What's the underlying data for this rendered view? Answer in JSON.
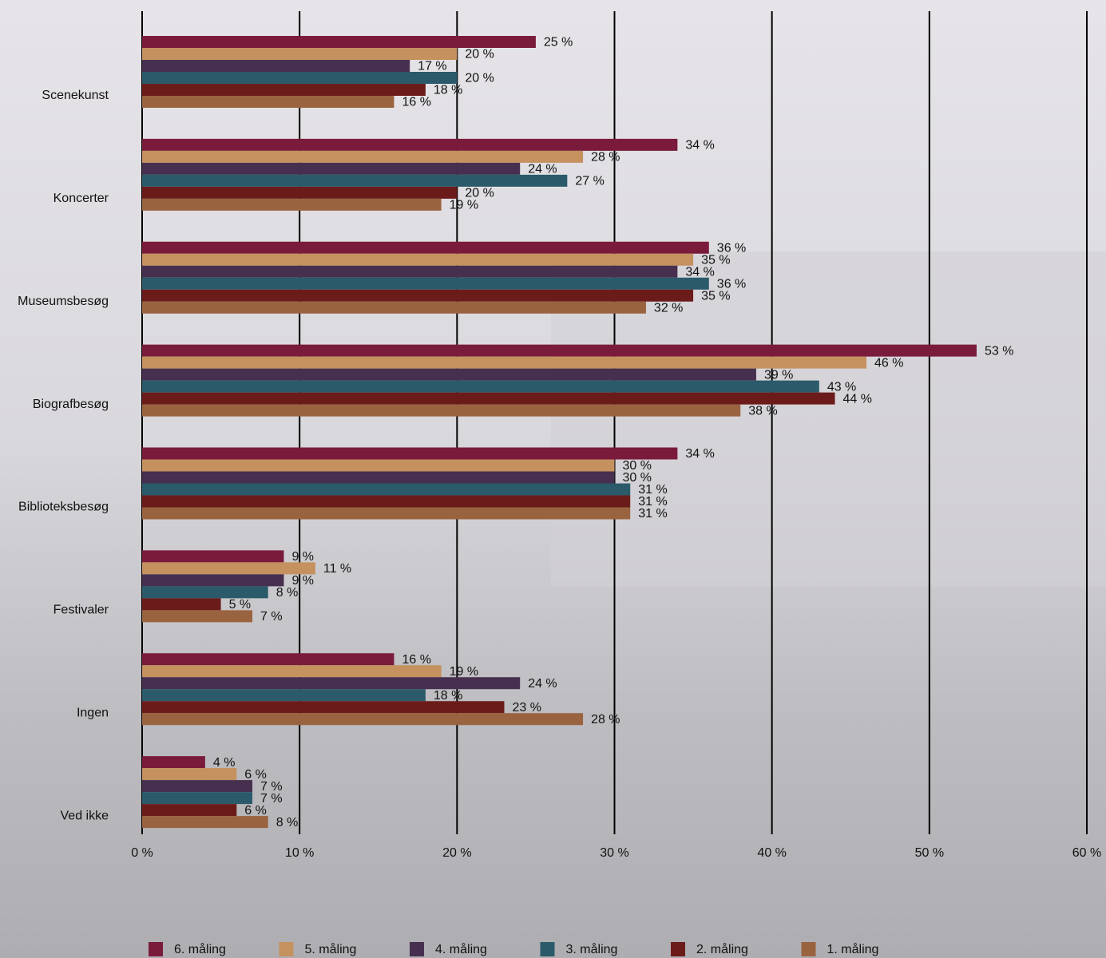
{
  "chart_data": {
    "type": "bar",
    "orientation": "horizontal",
    "categories": [
      "Scenekunst",
      "Koncerter",
      "Museumsbesøg",
      "Biografbesøg",
      "Biblioteksbesøg",
      "Festivaler",
      "Ingen",
      "Ved ikke"
    ],
    "series": [
      {
        "name": "6. måling",
        "color": "#7a1b3b",
        "values": [
          25,
          34,
          36,
          53,
          34,
          9,
          16,
          4
        ],
        "value_labels": [
          "25 %",
          "34 %",
          "36 %",
          "53 %",
          "34 %",
          "9 %",
          "16 %",
          "4 %"
        ]
      },
      {
        "name": "5. måling",
        "color": "#c4915f",
        "values": [
          20,
          28,
          35,
          46,
          30,
          11,
          19,
          6
        ],
        "value_labels": [
          "20 %",
          "28 %",
          "35 %",
          "46 %",
          "30 %",
          "11 %",
          "19 %",
          "6 %"
        ]
      },
      {
        "name": "4. måling",
        "color": "#47304f",
        "values": [
          17,
          24,
          34,
          39,
          30,
          9,
          24,
          7
        ],
        "value_labels": [
          "17 %",
          "24 %",
          "34 %",
          "39 %",
          "30 %",
          "9 %",
          "24 %",
          "7 %"
        ]
      },
      {
        "name": "3. måling",
        "color": "#2b5b6b",
        "values": [
          20,
          27,
          36,
          43,
          31,
          8,
          18,
          7
        ],
        "value_labels": [
          "20 %",
          "27 %",
          "36 %",
          "43 %",
          "31 %",
          "8 %",
          "18 %",
          "7 %"
        ]
      },
      {
        "name": "2. måling",
        "color": "#6b1c1a",
        "values": [
          18,
          20,
          35,
          44,
          31,
          5,
          23,
          6
        ],
        "value_labels": [
          "18 %",
          "20 %",
          "35 %",
          "44 %",
          "31 %",
          "5 %",
          "23 %",
          "6 %"
        ]
      },
      {
        "name": "1. måling",
        "color": "#9a6340",
        "values": [
          16,
          19,
          32,
          38,
          31,
          7,
          28,
          8
        ],
        "value_labels": [
          "16 %",
          "19 %",
          "32 %",
          "38 %",
          "31 %",
          "7 %",
          "28 %",
          "8 %"
        ]
      }
    ],
    "xlim": [
      0,
      60
    ],
    "xticks": [
      {
        "value": 0,
        "label": "0 %"
      },
      {
        "value": 10,
        "label": "10 %"
      },
      {
        "value": 20,
        "label": "20 %"
      },
      {
        "value": 30,
        "label": "30 %"
      },
      {
        "value": 40,
        "label": "40 %"
      },
      {
        "value": 50,
        "label": "50 %"
      },
      {
        "value": 60,
        "label": "60 %"
      }
    ],
    "grid": true,
    "legend": "bottom"
  }
}
